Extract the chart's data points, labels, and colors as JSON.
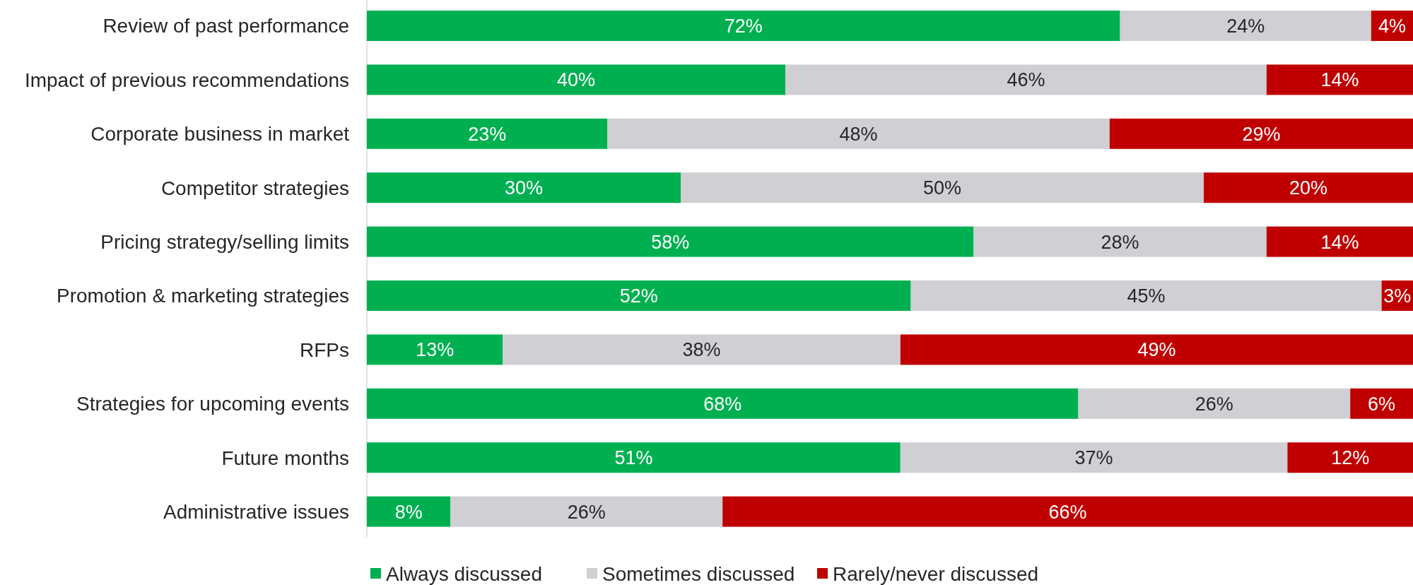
{
  "chart_data": {
    "type": "bar",
    "orientation": "horizontal",
    "stacked": true,
    "legend": "bottom",
    "categories": [
      "Review of past performance",
      "Impact of previous recommendations",
      "Corporate business in market",
      "Competitor strategies",
      "Pricing strategy/selling limits",
      "Promotion & marketing strategies",
      "RFPs",
      "Strategies for upcoming events",
      "Future months",
      "Administrative issues"
    ],
    "series": [
      {
        "name": "Always discussed",
        "color": "#00b050",
        "values": [
          72,
          40,
          23,
          30,
          58,
          52,
          13,
          68,
          51,
          8
        ],
        "value_labels": [
          "72%",
          "40%",
          "23%",
          "30%",
          "58%",
          "52%",
          "13%",
          "68%",
          "51%",
          "8%"
        ]
      },
      {
        "name": "Sometimes discussed",
        "color": "#d0cfd4",
        "values": [
          24,
          46,
          48,
          50,
          28,
          45,
          38,
          26,
          37,
          26
        ],
        "value_labels": [
          "24%",
          "46%",
          "48%",
          "50%",
          "28%",
          "45%",
          "38%",
          "26%",
          "37%",
          "26%"
        ]
      },
      {
        "name": "Rarely/never discussed",
        "color": "#c00000",
        "values": [
          4,
          14,
          29,
          20,
          14,
          3,
          49,
          6,
          12,
          66
        ],
        "value_labels": [
          "4%",
          "14%",
          "29%",
          "20%",
          "14%",
          "3%",
          "49%",
          "6%",
          "12%",
          "66%"
        ]
      }
    ]
  }
}
